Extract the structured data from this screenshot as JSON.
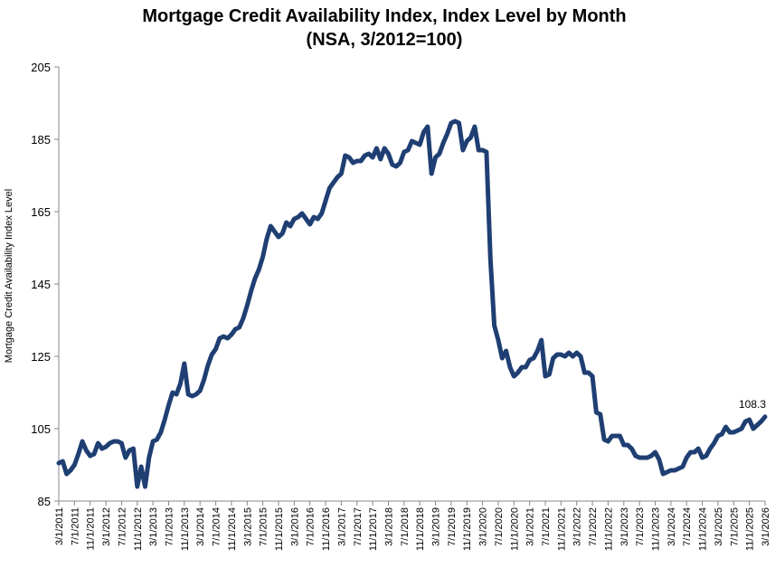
{
  "chart_data": {
    "type": "line",
    "title": "Mortgage Credit Availability Index, Index Level by Month",
    "subtitle": "(NSA, 3/2012=100)",
    "xlabel": "",
    "ylabel": "Mortgage Credit Availability Index Level",
    "ylim": [
      85,
      205
    ],
    "yticks": [
      85,
      105,
      125,
      145,
      165,
      185,
      205
    ],
    "grid": false,
    "line_color": "#1f3f73",
    "xticks": [
      "3/1/2011",
      "7/1/2011",
      "11/1/2011",
      "3/1/2012",
      "7/1/2012",
      "11/1/2012",
      "3/1/2013",
      "7/1/2013",
      "11/1/2013",
      "3/1/2014",
      "7/1/2014",
      "11/1/2014",
      "3/1/2015",
      "7/1/2015",
      "11/1/2015",
      "3/1/2016",
      "7/1/2016",
      "11/1/2016",
      "3/1/2017",
      "7/1/2017",
      "11/1/2017",
      "3/1/2018",
      "7/1/2018",
      "11/1/2018",
      "3/1/2019",
      "7/1/2019",
      "11/1/2019",
      "3/1/2020",
      "7/1/2020",
      "11/1/2020",
      "3/1/2021",
      "7/1/2021",
      "11/1/2021",
      "3/1/2022",
      "7/1/2022",
      "11/1/2022",
      "3/1/2023",
      "7/1/2023",
      "11/1/2023",
      "3/1/2024",
      "7/1/2024",
      "11/1/2024",
      "3/1/2025",
      "7/1/2025",
      "11/1/2025",
      "3/1/2026"
    ],
    "annotation": {
      "x": "3/1/2026",
      "label": "108.3"
    },
    "series": [
      {
        "start": "3/1/2011",
        "frequency": "monthly",
        "values": [
          95.5,
          96.0,
          92.5,
          93.5,
          95.0,
          98.0,
          101.5,
          99.0,
          97.5,
          98.0,
          101.0,
          99.5,
          100.0,
          101.0,
          101.5,
          101.5,
          101.0,
          97.0,
          99.0,
          99.5,
          89.0,
          94.5,
          89.0,
          97.0,
          101.5,
          102.0,
          104.0,
          107.5,
          111.5,
          115.0,
          114.5,
          117.5,
          123.0,
          114.5,
          114.0,
          114.5,
          115.5,
          118.5,
          122.5,
          125.5,
          127.0,
          130.0,
          130.5,
          130.0,
          131.0,
          132.5,
          133.0,
          135.5,
          139.0,
          143.0,
          146.5,
          149.0,
          152.5,
          157.5,
          161.0,
          159.5,
          158.0,
          159.0,
          162.0,
          161.0,
          163.0,
          163.5,
          164.5,
          163.0,
          161.5,
          163.5,
          163.0,
          164.5,
          168.0,
          171.5,
          173.0,
          174.5,
          175.5,
          180.5,
          180.0,
          178.5,
          179.0,
          179.0,
          180.5,
          181.0,
          180.0,
          182.5,
          179.5,
          182.5,
          181.0,
          178.0,
          177.5,
          178.5,
          181.5,
          182.0,
          184.5,
          184.0,
          183.5,
          187.0,
          188.5,
          175.5,
          180.0,
          181.0,
          184.0,
          186.5,
          189.5,
          190.0,
          189.5,
          182.0,
          184.5,
          185.5,
          188.5,
          182.0,
          182.0,
          181.5,
          152.0,
          133.5,
          129.5,
          124.5,
          126.5,
          122.0,
          119.5,
          120.5,
          122.0,
          122.0,
          124.0,
          124.5,
          126.5,
          129.5,
          119.5,
          120.0,
          124.5,
          125.5,
          125.5,
          125.0,
          126.0,
          125.0,
          126.0,
          125.0,
          120.5,
          120.5,
          119.5,
          109.5,
          109.0,
          102.0,
          101.5,
          103.0,
          103.0,
          103.0,
          100.5,
          100.5,
          99.5,
          97.5,
          97.0,
          97.0,
          97.0,
          97.5,
          98.5,
          96.5,
          92.5,
          93.0,
          93.5,
          93.5,
          94.0,
          94.5,
          97.0,
          98.5,
          98.5,
          99.5,
          97.0,
          97.5,
          99.5,
          101.0,
          103.0,
          103.5,
          105.5,
          104.0,
          104.0,
          104.5,
          105.0,
          107.0,
          107.5,
          105.0,
          106.0,
          107.0,
          108.3
        ]
      }
    ]
  }
}
